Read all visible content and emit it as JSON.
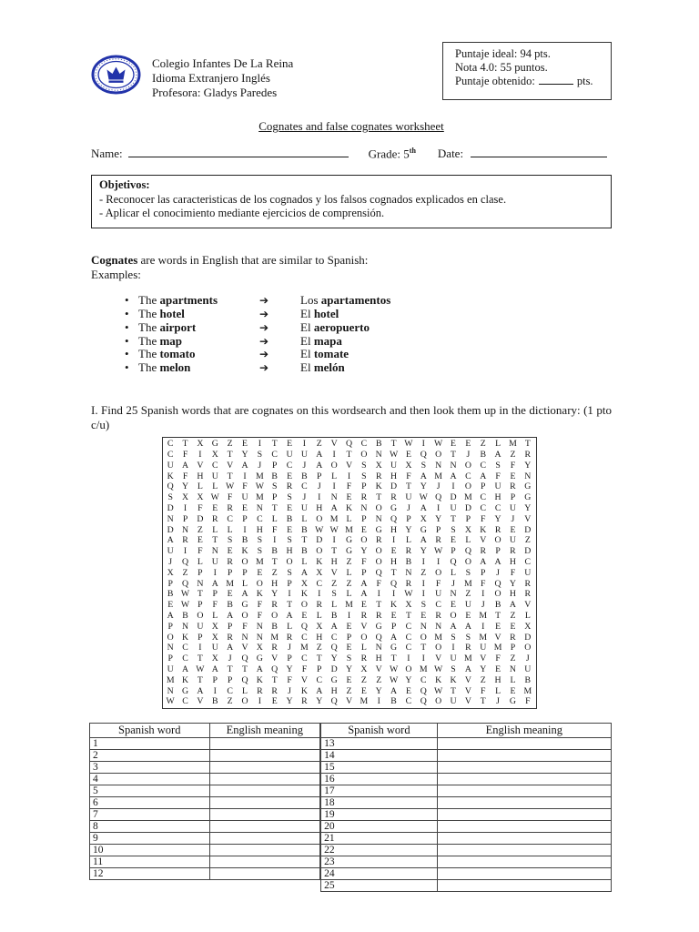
{
  "page": {
    "school": {
      "line1": "Colegio Infantes De La Reina",
      "line2": "Idioma Extranjero Inglés",
      "line3": "Profesora: Gladys Paredes"
    },
    "score_box": {
      "line1": "Puntaje ideal: 94  pts.",
      "line2": "Nota 4.0: 55 puntos.",
      "line3_prefix": "Puntaje obtenido:",
      "line3_suffix": "pts."
    },
    "title": "Cognates and false cognates worksheet",
    "fields": {
      "name_label": "Name:",
      "grade_label": "Grade:",
      "grade_value": "5",
      "grade_suffix": "th",
      "date_label": "Date:"
    },
    "objectives": {
      "heading": "Objetivos:",
      "items": [
        "- Reconocer las caracteristicas de los cognados y los falsos cognados explicados en clase.",
        "- Aplicar el conocimiento mediante ejercicios de comprensión."
      ]
    },
    "cognates_intro": {
      "bold": "Cognates",
      "rest": " are words in English that are similar to Spanish:",
      "examples_label": "Examples:"
    },
    "bullet_glyph": "•",
    "arrow_glyph": "➔",
    "examples": [
      {
        "en_prefix": "The ",
        "en_bold": "apartments",
        "es_prefix": "Los ",
        "es_bold": "apartamentos"
      },
      {
        "en_prefix": "The ",
        "en_bold": "hotel",
        "es_prefix": "El ",
        "es_bold": "hotel"
      },
      {
        "en_prefix": "The ",
        "en_bold": "airport",
        "es_prefix": "El ",
        "es_bold": "aeropuerto"
      },
      {
        "en_prefix": "The ",
        "en_bold": "map",
        "es_prefix": "El ",
        "es_bold": "mapa"
      },
      {
        "en_prefix": "The ",
        "en_bold": "tomato",
        "es_prefix": "El ",
        "es_bold": "tomate"
      },
      {
        "en_prefix": "The ",
        "en_bold": "melon",
        "es_prefix": "El ",
        "es_bold": "melón"
      }
    ],
    "task": {
      "text": "I. Find 25 Spanish words that are cognates on this wordsearch and then look them up in the dictionary: (1 pto c/u)"
    },
    "wordsearch": {
      "rows": [
        "CTXGZEITEIZVQCBTWIWEEZLMT",
        "CFIXTYSCUUAITONWEQOTJBAZR",
        "UAVCVAJPCJAOVSXUXSNNOCSFY",
        "KFHUTIMBEBPLISRHFAMACAFEN",
        "QYLLWFWSRCJIFPKDTYJIOPURG",
        "SXXWFUMPSJINERTRUWQDMCHPG",
        "DIFERENTEUHAKNOGJAIUDCCUY",
        "NPDRCPCLBLOMLPNQPXYTPFYJV",
        "DNZLLIHFEBWWMEGHYGPSXKRED",
        "ARETSBSISTDIGORILARELVOUZ",
        "UIFNEKSBHBOTGYOERYWPQRPRD",
        "JQLUROMTOLKHZFOHBIIQOAAHC",
        "XZPIPPEZSAXVLPQTNZOLSPJFU",
        "PQNAMLOHPXCZZAFQRIFJMFQYR",
        "BWTPEAKYIKISLAIIWIUNZIOHR",
        "EWPFBGFRTORLMETKXSCEUJBAV",
        "ABOLAOFOAELBIRRETEROEMTZL",
        "PNUXPFNBLQXAEVGPCNNAAIEEX",
        "OKPXRNNMRCHCPOQACOMSSMVRD",
        "NCIUAVXRJMZQELNGCTOIRUMPO",
        "PCTXJQGVPCTYSRHTIIVUMVFZJ",
        "UAWATTAQYFPDYXVWOMWSAYENU",
        "MKTPPQKTFVCGEZZWYCKKVZHLB",
        "NGAICLRRJKAHZEYAEQWTVFLEM",
        "WCVBZOIEYRYQVMIBCQOUVTJGF"
      ]
    },
    "answer_tables": {
      "left": {
        "headers": [
          "Spanish word",
          "English meaning"
        ],
        "row_numbers": [
          "1",
          "2",
          "3",
          "4",
          "5",
          "6",
          "7",
          "8",
          "9",
          "10",
          "11",
          "12"
        ]
      },
      "right": {
        "headers": [
          "Spanish word",
          "English meaning"
        ],
        "row_numbers": [
          "13",
          "14",
          "15",
          "16",
          "17",
          "18",
          "19",
          "20",
          "21",
          "22",
          "23",
          "24",
          "25"
        ]
      }
    },
    "logo_color": "#2233aa"
  }
}
